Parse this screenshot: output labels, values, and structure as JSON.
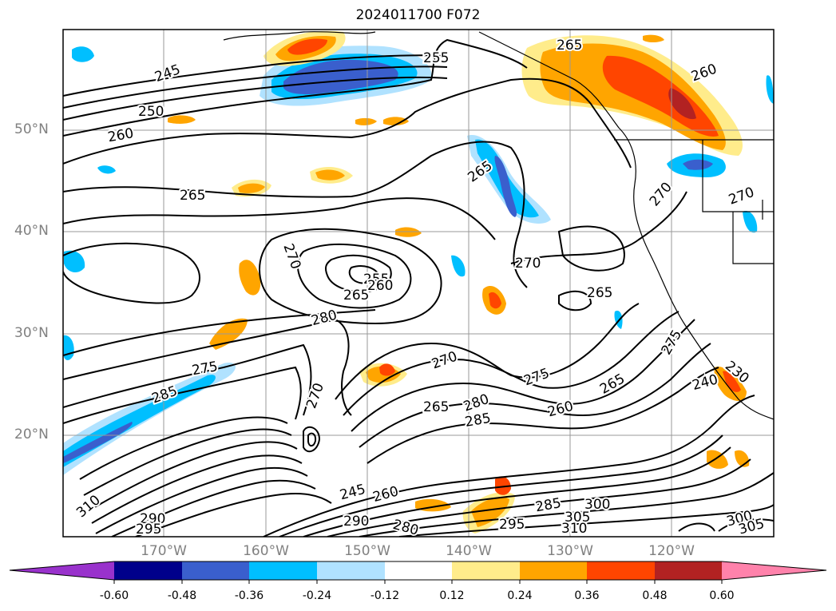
{
  "title": "2024011700 F072",
  "lat_labels": [
    "50°N",
    "40°N",
    "30°N",
    "20°N"
  ],
  "lon_labels": [
    "170°W",
    "160°W",
    "150°W",
    "140°W",
    "130°W",
    "120°W"
  ],
  "colorbar": {
    "ticks": [
      "-0.60",
      "-0.48",
      "-0.36",
      "-0.24",
      "-0.12",
      "0.12",
      "0.24",
      "0.36",
      "0.48",
      "0.60"
    ],
    "colors": [
      "#9932cc",
      "#00008b",
      "#3a5fcd",
      "#00bfff",
      "#b0e2ff",
      "#ffffff",
      "#ffec8b",
      "#ffa500",
      "#ff4500",
      "#b22222",
      "#ff82ab"
    ]
  },
  "contour_labels": [
    "245",
    "250",
    "255",
    "260",
    "265",
    "270",
    "275",
    "280",
    "285",
    "290",
    "295",
    "300",
    "305",
    "310",
    "240"
  ],
  "contour_label_instances": [
    "245",
    "250",
    "260",
    "265",
    "255",
    "265",
    "260",
    "265",
    "270",
    "270",
    "255",
    "265",
    "260",
    "280",
    "270",
    "265",
    "275",
    "285",
    "275",
    "270",
    "265",
    "280",
    "285",
    "260",
    "265",
    "240",
    "275",
    "245",
    "260",
    "280",
    "285",
    "295",
    "300",
    "305",
    "310",
    "300",
    "305",
    "310",
    "290",
    "290",
    "295",
    "230",
    "270",
    "270"
  ]
}
